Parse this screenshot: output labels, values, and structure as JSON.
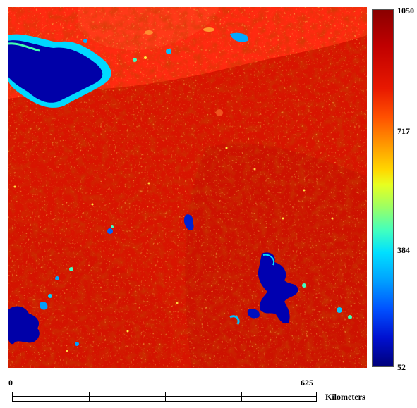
{
  "colorbar": {
    "ticks": [
      "1050",
      "717",
      "384",
      "52"
    ],
    "colors": [
      "#8a0000",
      "#e81800",
      "#ff9a00",
      "#e8ff20",
      "#40ffc0",
      "#00a0ff",
      "#00007a"
    ]
  },
  "scale": {
    "start_label": "0",
    "end_label": "625",
    "unit_label": "Kilometers"
  }
}
